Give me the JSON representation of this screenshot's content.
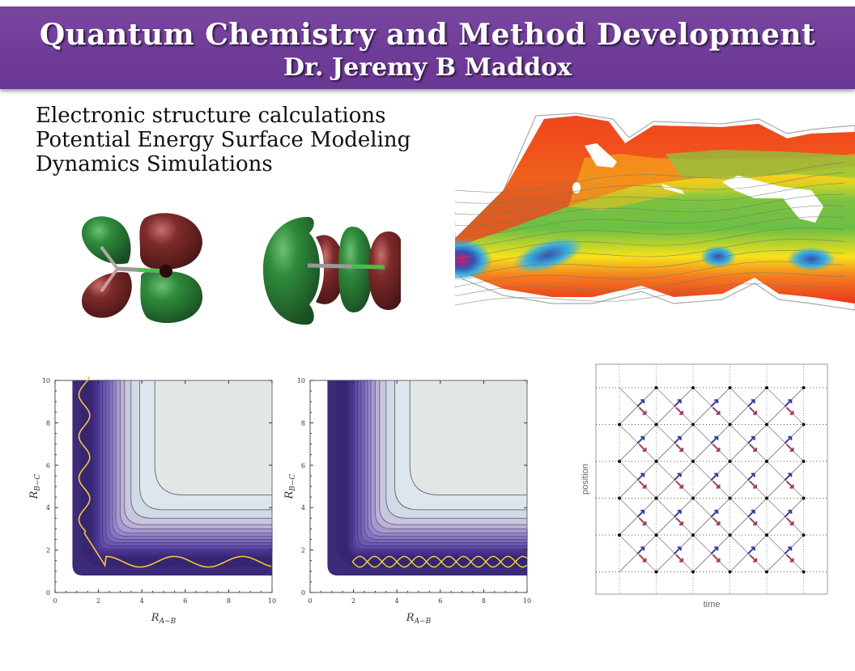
{
  "header": {
    "title": "Quantum Chemistry and Method Development",
    "subtitle": "Dr. Jeremy B Maddox",
    "colors": {
      "banner": "#6e3c98",
      "text": "#ffffff"
    }
  },
  "topics": [
    "Electronic structure calculations",
    "Potential Energy Surface Modeling",
    "Dynamics Simulations"
  ],
  "figures": {
    "orbitals": [
      {
        "name": "orbital-render-1",
        "colors": {
          "positive": "#2f7d3a",
          "negative": "#7c2a2a"
        }
      },
      {
        "name": "orbital-render-2",
        "colors": {
          "positive": "#2f7d3a",
          "negative": "#7c2a2a"
        }
      }
    ],
    "heatmap": {
      "name": "potential-energy-heatmap",
      "colors": [
        "#e8361c",
        "#f47a20",
        "#f7e21a",
        "#7cc242",
        "#3ab0e0",
        "#3550b0",
        "#e0106a"
      ]
    }
  },
  "chart_data": [
    {
      "type": "heatmap",
      "title": "",
      "xlabel": "R_{A-B}",
      "ylabel": "R_{B-C}",
      "xlim": [
        0,
        10
      ],
      "ylim": [
        0,
        10
      ],
      "xticks": [
        "0",
        "2",
        "4",
        "6",
        "8",
        "10"
      ],
      "yticks": [
        "0",
        "2",
        "4",
        "6",
        "8",
        "10"
      ],
      "xlabel_main": "R",
      "xlabel_sub": "A−B",
      "ylabel_main": "R",
      "ylabel_sub": "B−C",
      "trajectory": "single oscillating trajectory from upper-left valley to lower-right valley",
      "valley_min": 1.4,
      "plateau_corner": [
        4.7,
        4.7
      ],
      "contour_levels": [
        4.6,
        3.9,
        3.5,
        3.2,
        3.0,
        2.8,
        2.6,
        2.45,
        2.3,
        2.15,
        2.0,
        1.9,
        1.8
      ]
    },
    {
      "type": "heatmap",
      "title": "",
      "xlabel": "R_{A-B}",
      "ylabel": "R_{B-C}",
      "xlim": [
        0,
        10
      ],
      "ylim": [
        0,
        10
      ],
      "xticks": [
        "0",
        "2",
        "4",
        "6",
        "8",
        "10"
      ],
      "yticks": [
        "0",
        "2",
        "4",
        "6",
        "8",
        "10"
      ],
      "xlabel_main": "R",
      "xlabel_sub": "A−B",
      "ylabel_main": "R",
      "ylabel_sub": "B−C",
      "trajectory": "bound oscillating trajectory in lower valley, x from 1.9 to 10",
      "valley_min": 1.4,
      "plateau_corner": [
        4.7,
        4.7
      ],
      "contour_levels": [
        4.6,
        3.9,
        3.5,
        3.2,
        3.0,
        2.8,
        2.6,
        2.45,
        2.3,
        2.15,
        2.0,
        1.9,
        1.8
      ]
    },
    {
      "type": "scatter",
      "title": "",
      "xlabel": "time",
      "ylabel": "position",
      "grid": true,
      "columns": 6,
      "rows": 6,
      "description": "lattice of points connected by diagonal paths with blue up-arrows and red down-arrows"
    }
  ]
}
